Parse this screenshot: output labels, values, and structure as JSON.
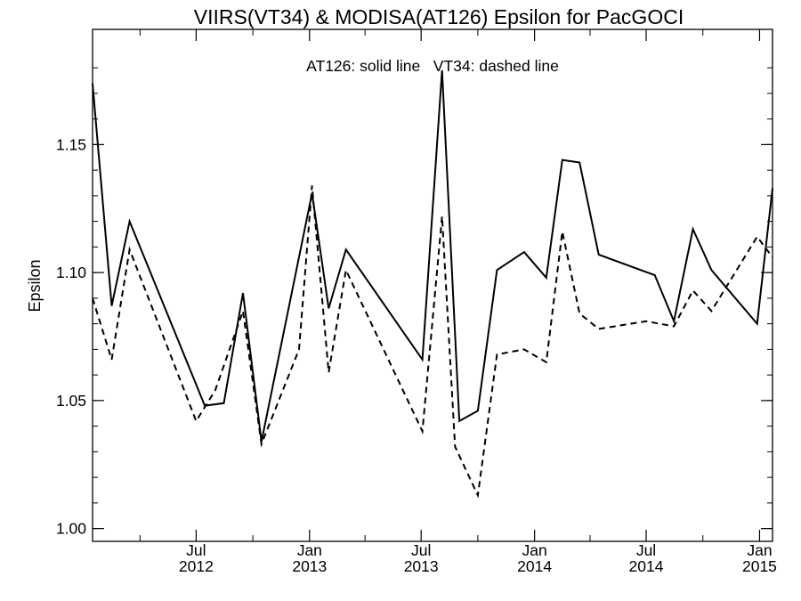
{
  "chart_data": {
    "type": "line",
    "title": "VIIRS(VT34) & MODISA(AT126)  Epsilon for PacGOCI",
    "annotation": "AT126: solid line   VT34: dashed line",
    "ylabel": "Epsilon",
    "xlabel": "",
    "ylim": [
      0.995,
      1.195
    ],
    "yticks": [
      "1.00",
      "1.05",
      "1.10",
      "1.15"
    ],
    "ytick_values": [
      1.0,
      1.05,
      1.1,
      1.15
    ],
    "xlim": [
      "2012-01-15",
      "2015-01-22"
    ],
    "xticks": [
      {
        "date": "2012-07-01",
        "month": "Jul",
        "year": "2012"
      },
      {
        "date": "2013-01-01",
        "month": "Jan",
        "year": "2013"
      },
      {
        "date": "2013-07-01",
        "month": "Jul",
        "year": "2013"
      },
      {
        "date": "2014-01-01",
        "month": "Jan",
        "year": "2014"
      },
      {
        "date": "2014-07-01",
        "month": "Jul",
        "year": "2014"
      },
      {
        "date": "2015-01-01",
        "month": "Jan",
        "year": "2015"
      }
    ],
    "grid": false,
    "colors": {
      "line": "#000000",
      "background": "#ffffff"
    },
    "series": [
      {
        "style": "solid",
        "points": [
          [
            "2012-01-15",
            1.174
          ],
          [
            "2012-02-15",
            1.087
          ],
          [
            "2012-03-15",
            1.12
          ],
          [
            "2012-07-15",
            1.048
          ],
          [
            "2012-08-15",
            1.049
          ],
          [
            "2012-09-15",
            1.092
          ],
          [
            "2012-10-15",
            1.034
          ],
          [
            "2013-01-05",
            1.131
          ],
          [
            "2013-02-01",
            1.086
          ],
          [
            "2013-03-01",
            1.109
          ],
          [
            "2013-07-03",
            1.066
          ],
          [
            "2013-08-04",
            1.179
          ],
          [
            "2013-09-01",
            1.042
          ],
          [
            "2013-10-01",
            1.046
          ],
          [
            "2013-11-01",
            1.101
          ],
          [
            "2013-12-15",
            1.108
          ],
          [
            "2014-01-20",
            1.098
          ],
          [
            "2014-02-15",
            1.144
          ],
          [
            "2014-03-15",
            1.143
          ],
          [
            "2014-04-15",
            1.107
          ],
          [
            "2014-07-15",
            1.099
          ],
          [
            "2014-08-15",
            1.081
          ],
          [
            "2014-09-15",
            1.117
          ],
          [
            "2014-10-15",
            1.101
          ],
          [
            "2014-12-28",
            1.08
          ],
          [
            "2015-01-22",
            1.133
          ]
        ]
      },
      {
        "style": "dashed",
        "points": [
          [
            "2012-01-15",
            1.09
          ],
          [
            "2012-02-15",
            1.066
          ],
          [
            "2012-03-15",
            1.109
          ],
          [
            "2012-07-01",
            1.042
          ],
          [
            "2012-08-01",
            1.054
          ],
          [
            "2012-09-15",
            1.085
          ],
          [
            "2012-10-15",
            1.033
          ],
          [
            "2012-12-15",
            1.07
          ],
          [
            "2013-01-05",
            1.134
          ],
          [
            "2013-02-01",
            1.061
          ],
          [
            "2013-03-01",
            1.101
          ],
          [
            "2013-07-03",
            1.038
          ],
          [
            "2013-08-04",
            1.122
          ],
          [
            "2013-08-25",
            1.032
          ],
          [
            "2013-10-01",
            1.013
          ],
          [
            "2013-11-01",
            1.068
          ],
          [
            "2013-12-15",
            1.07
          ],
          [
            "2014-01-20",
            1.065
          ],
          [
            "2014-02-15",
            1.116
          ],
          [
            "2014-03-15",
            1.084
          ],
          [
            "2014-04-15",
            1.078
          ],
          [
            "2014-07-01",
            1.081
          ],
          [
            "2014-08-15",
            1.079
          ],
          [
            "2014-09-15",
            1.093
          ],
          [
            "2014-10-15",
            1.085
          ],
          [
            "2014-12-28",
            1.114
          ],
          [
            "2015-01-22",
            1.106
          ]
        ]
      }
    ]
  }
}
